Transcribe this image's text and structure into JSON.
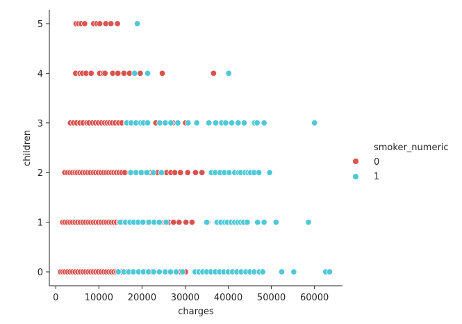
{
  "chart_data": {
    "type": "scatter",
    "xlabel": "charges",
    "ylabel": "children",
    "xlim": [
      -1500,
      66500
    ],
    "ylim": [
      -0.28,
      5.28
    ],
    "xticks": [
      0,
      10000,
      20000,
      30000,
      40000,
      50000,
      60000
    ],
    "xtick_labels": [
      "0",
      "10000",
      "20000",
      "30000",
      "40000",
      "50000",
      "60000"
    ],
    "yticks": [
      0,
      1,
      2,
      3,
      4,
      5
    ],
    "ytick_labels": [
      "0",
      "1",
      "2",
      "3",
      "4",
      "5"
    ],
    "grid": false,
    "legend": {
      "title": "smoker_numeric",
      "placement": "right",
      "entries": [
        {
          "label": "0",
          "color": "#d9534f"
        },
        {
          "label": "1",
          "color": "#4fc8d8"
        }
      ]
    },
    "series": [
      {
        "key": "0",
        "color": "#d9534f",
        "points": [
          {
            "y": 5,
            "x": [
              4700,
              5300,
              5900,
              6700,
              8800,
              9500,
              10200,
              11600,
              12800,
              14300
            ]
          },
          {
            "y": 4,
            "x": [
              4600,
              5600,
              6200,
              7000,
              8200,
              10200,
              11000,
              11400,
              13200,
              14400,
              15800,
              17100,
              19600,
              24700,
              36600
            ]
          },
          {
            "y": 3,
            "x": [
              3400,
              4100,
              4800,
              5600,
              6300,
              7200,
              7700,
              8500,
              9200,
              9900,
              10600,
              11300,
              11900,
              12500,
              13100,
              13800,
              14600,
              15300,
              16300,
              18500,
              20400,
              23200,
              25600,
              27200,
              30100
            ]
          },
          {
            "y": 2,
            "x": [
              2100,
              2700,
              3300,
              3900,
              4500,
              5000,
              5600,
              6200,
              6800,
              7400,
              8000,
              8700,
              9300,
              9900,
              10500,
              11100,
              11700,
              12300,
              12900,
              13500,
              14100,
              14700,
              15300,
              16000,
              17200,
              18600,
              20100,
              22100,
              23600,
              24800,
              25700,
              26700,
              27600,
              28900,
              30600,
              32400,
              33900,
              36600
            ]
          },
          {
            "y": 1,
            "x": [
              1600,
              2100,
              2700,
              3300,
              3900,
              4500,
              5100,
              5700,
              6300,
              6900,
              7500,
              8100,
              8700,
              9300,
              9900,
              10500,
              11100,
              11700,
              12300,
              12900,
              13500,
              14100,
              14700,
              15400,
              16200,
              17600,
              19300,
              21300,
              23000,
              24300,
              25300,
              26200,
              27300,
              28600,
              30200,
              31600,
              35200
            ]
          },
          {
            "y": 0,
            "x": [
              1100,
              1600,
              2100,
              2700,
              3300,
              3900,
              4500,
              5100,
              5700,
              6300,
              6900,
              7500,
              8100,
              8700,
              9300,
              9900,
              10500,
              11100,
              11700,
              12300,
              12900,
              13500,
              14100,
              14700,
              15300,
              16300,
              17600,
              19000,
              20600,
              22300,
              24200,
              26300,
              28900,
              30100,
              35800
            ]
          }
        ]
      },
      {
        "key": "1",
        "color": "#4fc8d8",
        "points": [
          {
            "y": 5,
            "x": [
              18900
            ]
          },
          {
            "y": 4,
            "x": [
              18300,
              21300,
              40100
            ]
          },
          {
            "y": 3,
            "x": [
              16500,
              17500,
              18600,
              19700,
              20300,
              21300,
              24100,
              25400,
              26700,
              28300,
              30700,
              32700,
              35500,
              37100,
              38500,
              39400,
              40800,
              42300,
              43700,
              46100,
              46700,
              48300,
              60000
            ]
          },
          {
            "y": 2,
            "x": [
              17400,
              18600,
              19800,
              21100,
              22600,
              24500,
              36100,
              37000,
              38100,
              39100,
              40200,
              41500,
              42400,
              42900,
              43900,
              44600,
              45200,
              46000,
              47100,
              49600
            ]
          },
          {
            "y": 1,
            "x": [
              15000,
              16200,
              17200,
              18100,
              19100,
              20200,
              21600,
              22800,
              24000,
              25600,
              35000,
              37400,
              38300,
              39200,
              39800,
              40700,
              41500,
              42200,
              42900,
              43600,
              44400,
              46800,
              48300,
              51100,
              58600
            ]
          },
          {
            "y": 0,
            "x": [
              14500,
              15800,
              16900,
              18000,
              19200,
              20300,
              21500,
              22700,
              24000,
              25400,
              26600,
              27900,
              29400,
              32300,
              33200,
              34100,
              35000,
              36000,
              37000,
              38000,
              39000,
              40000,
              41000,
              42000,
              43000,
              44100,
              45000,
              46000,
              47200,
              48000,
              52400,
              55200,
              62600,
              63500
            ]
          }
        ]
      }
    ]
  }
}
